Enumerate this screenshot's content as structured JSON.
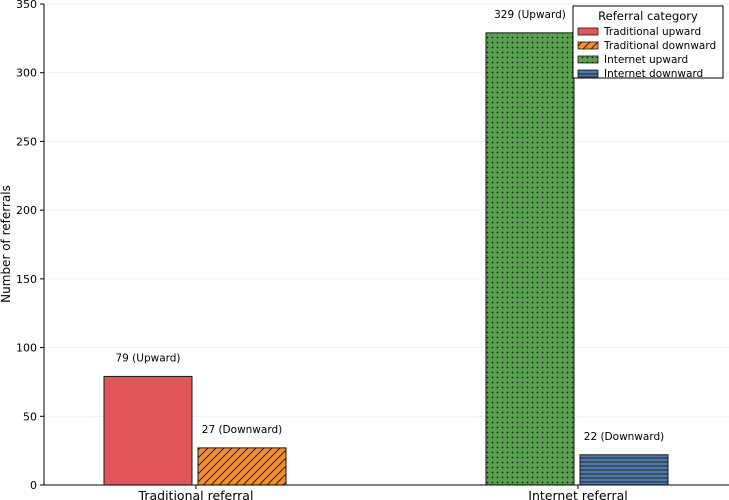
{
  "chart_data": {
    "type": "bar",
    "title": "",
    "xlabel": "",
    "ylabel": "Number of referrals",
    "ylim": [
      0,
      350
    ],
    "yticks": [
      0,
      50,
      100,
      150,
      200,
      250,
      300,
      350
    ],
    "grid": "horizontal",
    "categories": [
      "Traditional referral",
      "Internet referral"
    ],
    "bars": [
      {
        "category": 0,
        "slot": 0,
        "value": 79,
        "label": "79 (Upward)",
        "color": "#e15759",
        "pattern": "solid"
      },
      {
        "category": 0,
        "slot": 1,
        "value": 27,
        "label": "27 (Downward)",
        "color": "#f28e2b",
        "pattern": "diagonal-hatch"
      },
      {
        "category": 1,
        "slot": 0,
        "value": 329,
        "label": "329 (Upward)",
        "color": "#59a14f",
        "pattern": "dots"
      },
      {
        "category": 1,
        "slot": 1,
        "value": 22,
        "label": "22 (Downward)",
        "color": "#4e79a7",
        "pattern": "horizontal-lines"
      }
    ],
    "legend": {
      "title": "Referral category",
      "placement": "top-right",
      "entries": [
        {
          "label": "Traditional upward",
          "color": "#e15759",
          "pattern": "solid"
        },
        {
          "label": "Traditional downward",
          "color": "#f28e2b",
          "pattern": "diagonal-hatch"
        },
        {
          "label": "Internet upward",
          "color": "#59a14f",
          "pattern": "dots"
        },
        {
          "label": "Internet downward",
          "color": "#4e79a7",
          "pattern": "horizontal-lines"
        }
      ]
    }
  }
}
